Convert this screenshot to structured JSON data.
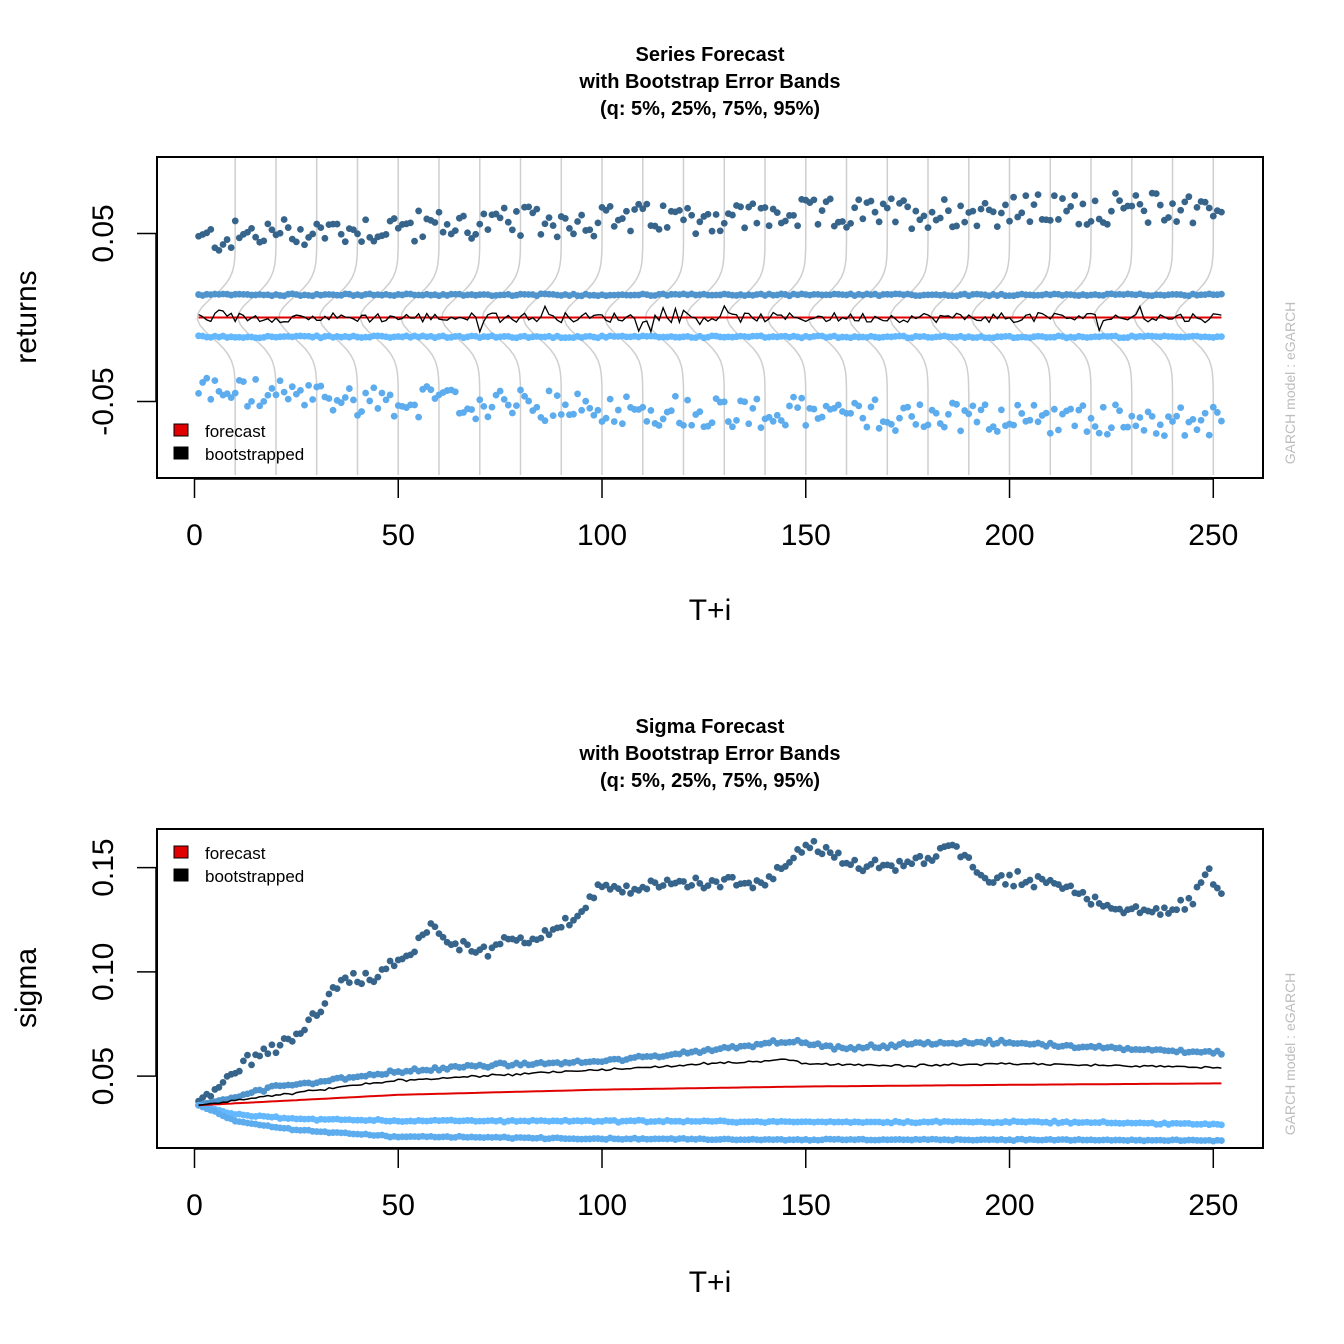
{
  "colors": {
    "forecast": "#e00000",
    "bootstrapped": "#000000",
    "q95": "#36648b",
    "q75": "#4f94cd",
    "q25": "#63b8ff",
    "q5": "#5cacee",
    "density": "#cfcfcf"
  },
  "chart_data": [
    {
      "type": "scatter",
      "title": [
        "Series Forecast",
        "with Bootstrap Error Bands",
        "(q: 5%, 25%, 75%, 95%)"
      ],
      "xlabel": "T+i",
      "ylabel": "returns",
      "side_label": "GARCH model : eGARCH",
      "xlim": [
        -9.2,
        262.2
      ],
      "ylim": [
        -0.0955,
        0.0955
      ],
      "xticks": [
        "0",
        "50",
        "100",
        "150",
        "200",
        "250"
      ],
      "yticks": [
        "-0.05",
        "0.05"
      ],
      "legend_position": "bottomleft",
      "legend": [
        "forecast",
        "bootstrapped"
      ],
      "n_steps": 252,
      "series": [
        {
          "name": "forecast",
          "style": "line",
          "approx": "constant",
          "value": 0.0
        },
        {
          "name": "bootstrapped",
          "style": "line",
          "approx": "noisy around 0.0 (±0.007)"
        },
        {
          "name": "q95",
          "style": "points",
          "approx": "0.044 rising to ~0.065, scatter ±0.012"
        },
        {
          "name": "q75",
          "style": "points",
          "approx": "~0.013"
        },
        {
          "name": "q25",
          "style": "points",
          "approx": "~-0.011"
        },
        {
          "name": "q5",
          "style": "points",
          "approx": "-0.040 falling to ~-0.065, scatter ±0.012"
        }
      ]
    },
    {
      "type": "scatter",
      "title": [
        "Sigma Forecast",
        "with Bootstrap Error Bands",
        "(q: 5%, 25%, 75%, 95%)"
      ],
      "xlabel": "T+i",
      "ylabel": "sigma",
      "side_label": "GARCH model : eGARCH",
      "xlim": [
        -9.2,
        262.2
      ],
      "ylim": [
        0.0155,
        0.1685
      ],
      "xticks": [
        "0",
        "50",
        "100",
        "150",
        "200",
        "250"
      ],
      "yticks": [
        "0.05",
        "0.10",
        "0.15"
      ],
      "legend_position": "topleft",
      "legend": [
        "forecast",
        "bootstrapped"
      ],
      "n_steps": 252,
      "anchors": {
        "forecast": [
          [
            1,
            0.036
          ],
          [
            50,
            0.041
          ],
          [
            100,
            0.0435
          ],
          [
            150,
            0.045
          ],
          [
            200,
            0.0458
          ],
          [
            252,
            0.0465
          ]
        ],
        "bootstrapped": [
          [
            1,
            0.036
          ],
          [
            25,
            0.042
          ],
          [
            50,
            0.048
          ],
          [
            80,
            0.051
          ],
          [
            110,
            0.054
          ],
          [
            145,
            0.058
          ],
          [
            150,
            0.056
          ],
          [
            175,
            0.055
          ],
          [
            200,
            0.056
          ],
          [
            252,
            0.054
          ]
        ],
        "q95": [
          [
            1,
            0.038
          ],
          [
            10,
            0.053
          ],
          [
            20,
            0.064
          ],
          [
            30,
            0.078
          ],
          [
            35,
            0.095
          ],
          [
            45,
            0.099
          ],
          [
            52,
            0.106
          ],
          [
            58,
            0.122
          ],
          [
            62,
            0.115
          ],
          [
            70,
            0.11
          ],
          [
            80,
            0.116
          ],
          [
            90,
            0.12
          ],
          [
            100,
            0.14
          ],
          [
            110,
            0.14
          ],
          [
            120,
            0.143
          ],
          [
            140,
            0.142
          ],
          [
            150,
            0.16
          ],
          [
            160,
            0.152
          ],
          [
            170,
            0.15
          ],
          [
            180,
            0.153
          ],
          [
            185,
            0.161
          ],
          [
            195,
            0.144
          ],
          [
            210,
            0.142
          ],
          [
            220,
            0.136
          ],
          [
            230,
            0.128
          ],
          [
            245,
            0.132
          ],
          [
            248,
            0.15
          ],
          [
            252,
            0.136
          ]
        ],
        "q75": [
          [
            1,
            0.036
          ],
          [
            20,
            0.045
          ],
          [
            50,
            0.052
          ],
          [
            70,
            0.055
          ],
          [
            100,
            0.057
          ],
          [
            120,
            0.061
          ],
          [
            145,
            0.067
          ],
          [
            160,
            0.063
          ],
          [
            180,
            0.066
          ],
          [
            200,
            0.066
          ],
          [
            252,
            0.061
          ]
        ],
        "q25": [
          [
            1,
            0.036
          ],
          [
            10,
            0.0315
          ],
          [
            25,
            0.0295
          ],
          [
            50,
            0.0285
          ],
          [
            100,
            0.0285
          ],
          [
            150,
            0.028
          ],
          [
            200,
            0.028
          ],
          [
            252,
            0.027
          ]
        ],
        "q5": [
          [
            1,
            0.036
          ],
          [
            10,
            0.0285
          ],
          [
            25,
            0.024
          ],
          [
            50,
            0.021
          ],
          [
            100,
            0.02
          ],
          [
            150,
            0.0195
          ],
          [
            200,
            0.0195
          ],
          [
            252,
            0.019
          ]
        ]
      },
      "series": [
        {
          "name": "forecast",
          "style": "line"
        },
        {
          "name": "bootstrapped",
          "style": "line"
        },
        {
          "name": "q95",
          "style": "points"
        },
        {
          "name": "q75",
          "style": "points"
        },
        {
          "name": "q25",
          "style": "points"
        },
        {
          "name": "q5",
          "style": "points"
        }
      ]
    }
  ]
}
